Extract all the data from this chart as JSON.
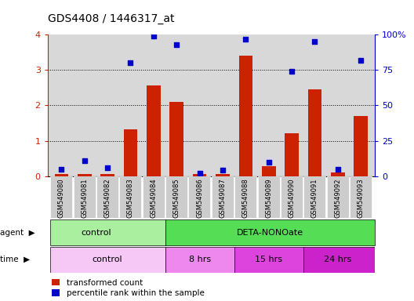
{
  "title": "GDS4408 / 1446317_at",
  "samples": [
    "GSM549080",
    "GSM549081",
    "GSM549082",
    "GSM549083",
    "GSM549084",
    "GSM549085",
    "GSM549086",
    "GSM549087",
    "GSM549088",
    "GSM549089",
    "GSM549090",
    "GSM549091",
    "GSM549092",
    "GSM549093"
  ],
  "red_values": [
    0.05,
    0.05,
    0.05,
    1.32,
    2.57,
    2.1,
    0.05,
    0.05,
    3.4,
    0.27,
    1.2,
    2.45,
    0.1,
    1.7
  ],
  "blue_values": [
    5,
    11,
    6,
    80,
    99,
    93,
    2,
    4,
    97,
    10,
    74,
    95,
    5,
    82
  ],
  "ylim_left": [
    0,
    4
  ],
  "ylim_right": [
    0,
    100
  ],
  "yticks_left": [
    0,
    1,
    2,
    3,
    4
  ],
  "yticks_right": [
    0,
    25,
    50,
    75,
    100
  ],
  "yticklabels_right": [
    "0",
    "25",
    "50",
    "75",
    "100%"
  ],
  "bar_color": "#cc2200",
  "dot_color": "#0000cc",
  "bg_color": "#d8d8d8",
  "agent_control_color": "#aaeea0",
  "agent_treatment_color": "#55dd55",
  "time_control_color": "#f5c8f5",
  "time_8hrs_color": "#ee88ee",
  "time_15hrs_color": "#dd44dd",
  "time_24hrs_color": "#cc22cc",
  "legend_red": "transformed count",
  "legend_blue": "percentile rank within the sample"
}
